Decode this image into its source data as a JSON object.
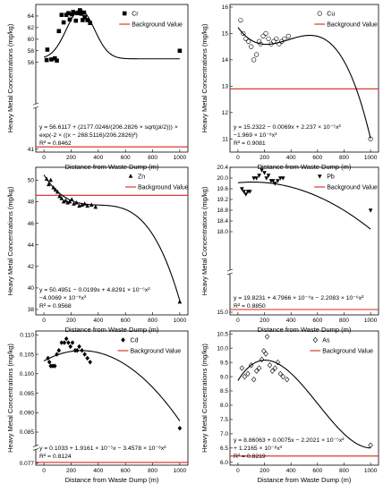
{
  "chart_data": [
    {
      "id": "cr",
      "type": "scatter",
      "element": "Cr",
      "marker": "square",
      "background_label": "Background Value",
      "xlabel": "Distance from Waste Dump (m)",
      "ylabel": "Heavy Metal Concentrations (mg/kg)",
      "xlim": [
        -60,
        1060
      ],
      "ylim": [
        40.5,
        66
      ],
      "xticks": [
        0,
        200,
        400,
        600,
        800,
        1000
      ],
      "yticks": [
        41,
        56,
        58,
        60,
        62,
        64
      ],
      "ytick_labels": [
        "41",
        "56",
        "58",
        "60",
        "62",
        "64"
      ],
      "axis_break": true,
      "background_value": 41.4,
      "points": {
        "x": [
          20,
          25,
          55,
          80,
          95,
          110,
          130,
          145,
          165,
          180,
          190,
          205,
          215,
          235,
          245,
          255,
          265,
          275,
          285,
          295,
          300,
          320,
          340,
          1000
        ],
        "y": [
          56.4,
          58.2,
          56.5,
          56.7,
          56.3,
          61.4,
          64.2,
          62.9,
          64.2,
          64.5,
          63.4,
          64.3,
          64.7,
          63.2,
          64.5,
          64.6,
          65.0,
          64.4,
          63.3,
          64.6,
          63.8,
          63.3,
          62.8,
          58.0
        ]
      },
      "equation_lines": [
        "y = 56.6117 + (2177.0246/(206.2826 × sqrt(pi/2))) ×",
        "exp(-2 × ((x − 268.5116)/206.2826)²)",
        "R² = 0.8462"
      ],
      "fit": {
        "kind": "gauss",
        "y0": 56.6117,
        "A": 2177.0246,
        "w": 206.2826,
        "xc": 268.5116
      }
    },
    {
      "id": "cu",
      "type": "scatter",
      "element": "Cu",
      "marker": "circle-open",
      "background_label": "Background Value",
      "xlabel": "Distance from Waste Dump (m)",
      "ylabel": "Heavy Metal Concentrations (mg/kg)",
      "xlim": [
        -60,
        1060
      ],
      "ylim": [
        10.5,
        16.1
      ],
      "xticks": [
        0,
        200,
        400,
        600,
        800,
        1000
      ],
      "yticks": [
        11,
        12,
        13,
        14,
        15,
        16
      ],
      "ytick_labels": [
        "11",
        "12",
        "13",
        "14",
        "15",
        "16"
      ],
      "axis_break": false,
      "background_value": 12.9,
      "points": {
        "x": [
          20,
          40,
          60,
          80,
          100,
          120,
          140,
          160,
          170,
          190,
          210,
          230,
          250,
          270,
          290,
          310,
          330,
          350,
          380,
          1000
        ],
        "y": [
          15.5,
          15.0,
          14.8,
          14.7,
          14.5,
          14.0,
          14.2,
          14.7,
          14.6,
          14.9,
          15.0,
          14.8,
          14.6,
          14.7,
          14.8,
          14.6,
          14.7,
          14.8,
          14.9,
          11.0
        ]
      },
      "equation_lines": [
        "y = 15.2322 − 0.0069x + 2.237 × 10⁻⁵x²",
        "−1.969 × 10⁻⁸x³",
        "R² = 0.9081"
      ],
      "fit": {
        "kind": "poly",
        "coef": [
          15.2322,
          -0.0069,
          2.237e-05,
          -1.969e-08
        ]
      }
    },
    {
      "id": "zn",
      "type": "scatter",
      "element": "Zn",
      "marker": "triangle-up",
      "background_label": "Background Value",
      "xlabel": "Distance from Waste Dump (m)",
      "ylabel": "Heavy Metal Concentrations (mg/kg)",
      "xlim": [
        -60,
        1060
      ],
      "ylim": [
        37.5,
        51.2
      ],
      "xticks": [
        0,
        200,
        400,
        600,
        800,
        1000
      ],
      "yticks": [
        38,
        40,
        42,
        44,
        46,
        48,
        50
      ],
      "ytick_labels": [
        "38",
        "40",
        "42",
        "44",
        "46",
        "48",
        "50"
      ],
      "axis_break": false,
      "background_value": 48.6,
      "points": {
        "x": [
          20,
          35,
          50,
          70,
          85,
          100,
          115,
          130,
          145,
          160,
          175,
          190,
          205,
          220,
          240,
          260,
          280,
          300,
          320,
          350,
          380,
          1000
        ],
        "y": [
          50.1,
          49.6,
          50.0,
          49.3,
          49.1,
          48.9,
          48.5,
          48.3,
          48.0,
          48.1,
          47.9,
          48.0,
          48.2,
          47.8,
          47.9,
          47.6,
          47.7,
          47.8,
          47.6,
          47.7,
          47.5,
          38.7
        ]
      },
      "equation_lines": [
        "y = 50.4951 − 0.0199x + 4.8291 × 10⁻⁵x²",
        "−4.0069 × 10⁻⁸x³",
        "R² = 0.9568"
      ],
      "fit": {
        "kind": "poly",
        "coef": [
          50.4951,
          -0.0199,
          4.8291e-05,
          -4.0069e-08
        ]
      }
    },
    {
      "id": "pb",
      "type": "scatter",
      "element": "Pb",
      "marker": "triangle-down",
      "background_label": "Background Value",
      "xlabel": "Distance from Waste Dump (m)",
      "ylabel": "Heavy Metal Concentrations (mg/kg)",
      "xlim": [
        -60,
        1060
      ],
      "ylim": [
        14.9,
        20.4
      ],
      "xticks": [
        0,
        200,
        400,
        600,
        800,
        1000
      ],
      "yticks": [
        15.0,
        18.0,
        18.4,
        18.8,
        19.2,
        19.6,
        20.0,
        20.4
      ],
      "ytick_labels": [
        "15.0",
        "18.0",
        "18.4",
        "18.8",
        "19.2",
        "19.6",
        "20.0",
        "20.4"
      ],
      "axis_break": true,
      "background_value": 15.1,
      "points": {
        "x": [
          30,
          45,
          60,
          75,
          90,
          120,
          140,
          160,
          180,
          200,
          215,
          230,
          250,
          265,
          280,
          300,
          320,
          340,
          1000
        ],
        "y": [
          19.6,
          19.5,
          19.4,
          19.5,
          19.5,
          20.0,
          20.0,
          20.1,
          20.3,
          20.2,
          20.0,
          20.1,
          19.9,
          19.9,
          19.8,
          19.9,
          20.0,
          20.0,
          18.8
        ]
      },
      "equation_lines": [
        "y = 19.8231 + 4.7966 × 10⁻⁴x − 2.2083 × 10⁻⁶x²",
        "R² = 0.8850"
      ],
      "fit": {
        "kind": "poly",
        "coef": [
          19.8231,
          0.00047966,
          -2.2083e-06,
          0
        ]
      }
    },
    {
      "id": "cd",
      "type": "scatter",
      "element": "Cd",
      "marker": "diamond",
      "background_label": "Background Value",
      "xlabel": "Distance from Waste Dump (m)",
      "ylabel": "Heavy Metal Concentrations (mg/kg)",
      "xlim": [
        -60,
        1060
      ],
      "ylim": [
        0.0765,
        0.111
      ],
      "xticks": [
        0,
        200,
        400,
        600,
        800,
        1000
      ],
      "yticks": [
        0.077,
        0.085,
        0.09,
        0.095,
        0.1,
        0.105,
        0.11
      ],
      "ytick_labels": [
        "0.077",
        "0.085",
        "0.090",
        "0.095",
        "0.100",
        "0.105",
        "0.110"
      ],
      "axis_break": true,
      "background_value": 0.0772,
      "points": {
        "x": [
          30,
          40,
          50,
          65,
          80,
          95,
          110,
          130,
          150,
          165,
          180,
          195,
          210,
          230,
          245,
          260,
          280,
          300,
          320,
          340,
          1000
        ],
        "y": [
          0.104,
          0.103,
          0.102,
          0.102,
          0.102,
          0.105,
          0.106,
          0.108,
          0.108,
          0.109,
          0.108,
          0.107,
          0.108,
          0.106,
          0.106,
          0.107,
          0.106,
          0.105,
          0.104,
          0.103,
          0.086
        ]
      },
      "equation_lines": [
        "y = 0.1033 + 1.9161 × 10⁻⁵x − 3.4578 × 10⁻⁸x²",
        "R² = 0.8124"
      ],
      "fit": {
        "kind": "poly",
        "coef": [
          0.1033,
          1.9161e-05,
          -3.4578e-08,
          0
        ]
      }
    },
    {
      "id": "as",
      "type": "scatter",
      "element": "As",
      "marker": "diamond-open",
      "background_label": "Background Value",
      "xlabel": "Distance from Waste Dump (m)",
      "ylabel": "Heavy Metal Concentrations (mg/kg)",
      "xlim": [
        -60,
        1060
      ],
      "ylim": [
        5.9,
        10.6
      ],
      "xticks": [
        0,
        200,
        400,
        600,
        800,
        1000
      ],
      "yticks": [
        6.0,
        6.5,
        7.0,
        7.5,
        8.0,
        8.5,
        9.0,
        9.5,
        10.0,
        10.5
      ],
      "ytick_labels": [
        "6.0",
        "6.5",
        "7.0",
        "7.5",
        "8.0",
        "8.5",
        "9.0",
        "9.5",
        "10.0",
        "10.5"
      ],
      "axis_break": false,
      "background_value": 6.22,
      "points": {
        "x": [
          30,
          50,
          75,
          100,
          120,
          140,
          160,
          180,
          195,
          210,
          220,
          240,
          260,
          280,
          300,
          320,
          340,
          370,
          1000
        ],
        "y": [
          9.3,
          9.0,
          9.1,
          9.4,
          8.9,
          9.2,
          9.3,
          9.6,
          9.9,
          9.8,
          10.4,
          9.4,
          9.2,
          9.3,
          9.5,
          9.1,
          9.0,
          8.9,
          6.6
        ]
      },
      "equation_lines": [
        "y = 8.86063 + 0.0075x − 2.2021 × 10⁻⁵x²",
        "+ 1.2165 × 10⁻⁸x³",
        "R² = 0.8219"
      ],
      "fit": {
        "kind": "poly",
        "coef": [
          8.86063,
          0.0075,
          -2.2021e-05,
          1.2165e-08
        ]
      }
    }
  ]
}
